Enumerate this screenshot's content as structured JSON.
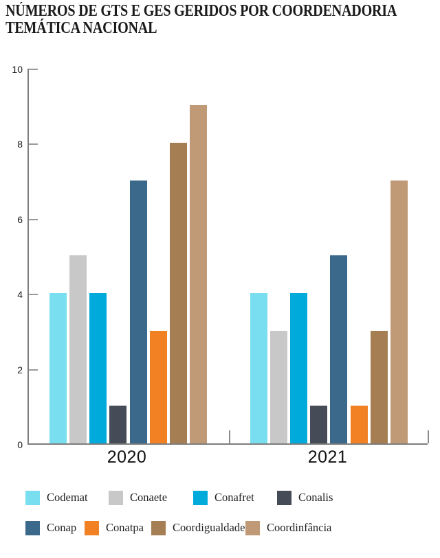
{
  "title_lines": [
    "NÚMEROS DE GTS E GES GERIDOS POR COORDENADORIA",
    "TEMÁTICA NACIONAL"
  ],
  "chart_data": {
    "type": "bar",
    "title": "NÚMEROS DE GTS E GES GERIDOS POR COORDENADORIA TEMÁTICA NACIONAL",
    "categories": [
      "2020",
      "2021"
    ],
    "series": [
      {
        "name": "Codemat",
        "color": "#79DFF0",
        "values": [
          4,
          4
        ]
      },
      {
        "name": "Conaete",
        "color": "#C8C8C9",
        "values": [
          5,
          3
        ]
      },
      {
        "name": "Conafret",
        "color": "#00ABDC",
        "values": [
          4,
          4
        ]
      },
      {
        "name": "Conalis",
        "color": "#454C58",
        "values": [
          1,
          1
        ]
      },
      {
        "name": "Conap",
        "color": "#3A698C",
        "values": [
          7,
          5
        ]
      },
      {
        "name": "Conatpa",
        "color": "#F28124",
        "values": [
          3,
          1
        ]
      },
      {
        "name": "Coordigualdade",
        "color": "#A67E53",
        "values": [
          8,
          3
        ]
      },
      {
        "name": "Coordinfância",
        "color": "#C09A76",
        "values": [
          9,
          7
        ]
      }
    ],
    "xlabel": "",
    "ylabel": "",
    "ylim": [
      0,
      10
    ],
    "yticks": [
      0,
      2,
      4,
      6,
      8,
      10
    ],
    "grid": false,
    "legend_position": "bottom"
  }
}
